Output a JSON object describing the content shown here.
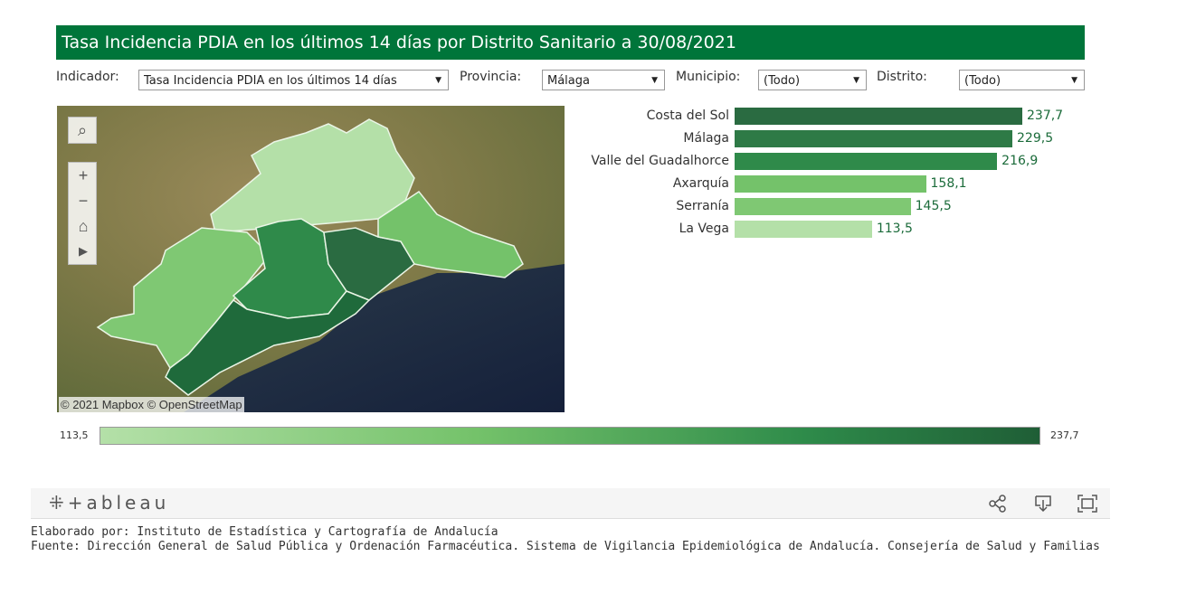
{
  "title": "Tasa Incidencia PDIA en los últimos 14 días por Distrito Sanitario a 30/08/2021",
  "filters": {
    "indicador": {
      "label": "Indicador:",
      "value": "Tasa Incidencia PDIA en los últimos 14 días"
    },
    "provincia": {
      "label": "Provincia:",
      "value": "Málaga"
    },
    "municipio": {
      "label": "Municipio:",
      "value": "(Todo)"
    },
    "distrito": {
      "label": "Distrito:",
      "value": "(Todo)"
    }
  },
  "map": {
    "attribution": "© 2021 Mapbox © OpenStreetMap",
    "tools": [
      "search-icon",
      "zoom-in-icon",
      "zoom-out-icon",
      "home-icon",
      "play-icon"
    ],
    "colors": {
      "low": "#b4e0a8",
      "mid": "#74c26a",
      "high": "#2a7a44",
      "top": "#1f6a3b"
    }
  },
  "chart_data": {
    "type": "bar",
    "categories": [
      "Costa del Sol",
      "Málaga",
      "Valle del Guadalhorce",
      "Axarquía",
      "Serranía",
      "La Vega"
    ],
    "values": [
      237.7,
      229.5,
      216.9,
      158.1,
      145.5,
      113.5
    ],
    "value_labels": [
      "237,7",
      "229,5",
      "216,9",
      "158,1",
      "145,5",
      "113,5"
    ],
    "colors": [
      "#2a6b41",
      "#2e7a46",
      "#2f8a4a",
      "#74c26a",
      "#7fc873",
      "#b4e0a8"
    ],
    "xlim": [
      0,
      240
    ]
  },
  "legend": {
    "min": "113,5",
    "max": "237,7"
  },
  "footer": {
    "logo": "+ableau",
    "icons": [
      "share-icon",
      "download-icon",
      "fullscreen-icon"
    ]
  },
  "credits": {
    "elaborado": "Elaborado por: Instituto de Estadística y Cartografía de Andalucía",
    "fuente": "Fuente: Dirección General de Salud Pública y Ordenación Farmacéutica. Sistema de Vigilancia Epidemiológica de Andalucía. Consejería de Salud y Familias"
  }
}
